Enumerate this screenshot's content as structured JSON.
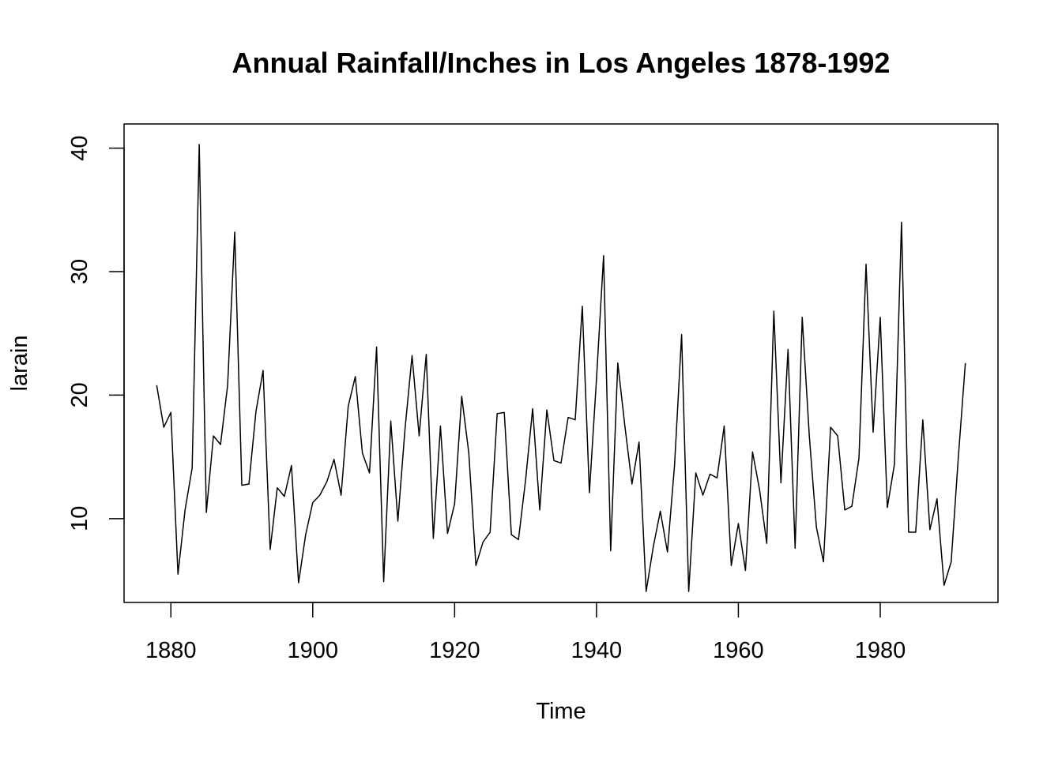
{
  "chart_data": {
    "type": "line",
    "title": "Annual Rainfall/Inches in Los Angeles 1878-1992",
    "xlabel": "Time",
    "ylabel": "larain",
    "xlim": [
      1873.4,
      1996.6
    ],
    "ylim": [
      3.21,
      41.96
    ],
    "xticks": [
      1880,
      1900,
      1920,
      1940,
      1960,
      1980
    ],
    "yticks": [
      10,
      20,
      30,
      40
    ],
    "grid": false,
    "series": [
      {
        "x_start": 1878,
        "values": [
          20.8,
          17.4,
          18.6,
          5.5,
          10.7,
          14.1,
          40.3,
          10.5,
          16.7,
          16.0,
          20.8,
          33.2,
          12.7,
          12.8,
          18.7,
          22.0,
          7.5,
          12.5,
          11.8,
          14.3,
          4.8,
          8.7,
          11.3,
          11.9,
          13.0,
          14.8,
          11.9,
          19.1,
          21.5,
          15.3,
          13.7,
          23.9,
          4.9,
          17.9,
          9.8,
          17.2,
          23.2,
          16.7,
          23.3,
          8.4,
          17.5,
          8.8,
          11.2,
          19.9,
          15.3,
          6.2,
          8.1,
          8.9,
          18.5,
          18.6,
          8.7,
          8.3,
          13.1,
          18.9,
          10.7,
          18.8,
          14.7,
          14.5,
          18.2,
          18.0,
          27.2,
          12.1,
          21.3,
          31.3,
          7.4,
          22.6,
          17.5,
          12.8,
          16.2,
          4.1,
          7.7,
          10.6,
          7.3,
          14.3,
          24.9,
          4.1,
          13.7,
          11.9,
          13.6,
          13.3,
          17.5,
          6.2,
          9.6,
          5.8,
          15.4,
          12.3,
          8.0,
          26.8,
          12.9,
          23.7,
          7.6,
          26.3,
          16.7,
          9.3,
          6.5,
          17.4,
          16.7,
          10.7,
          11.0,
          14.9,
          30.6,
          17.0,
          26.3,
          10.9,
          14.4,
          34.0,
          8.9,
          8.9,
          18.0,
          9.1,
          11.6,
          4.6,
          6.5,
          14.9,
          22.6
        ]
      }
    ]
  }
}
